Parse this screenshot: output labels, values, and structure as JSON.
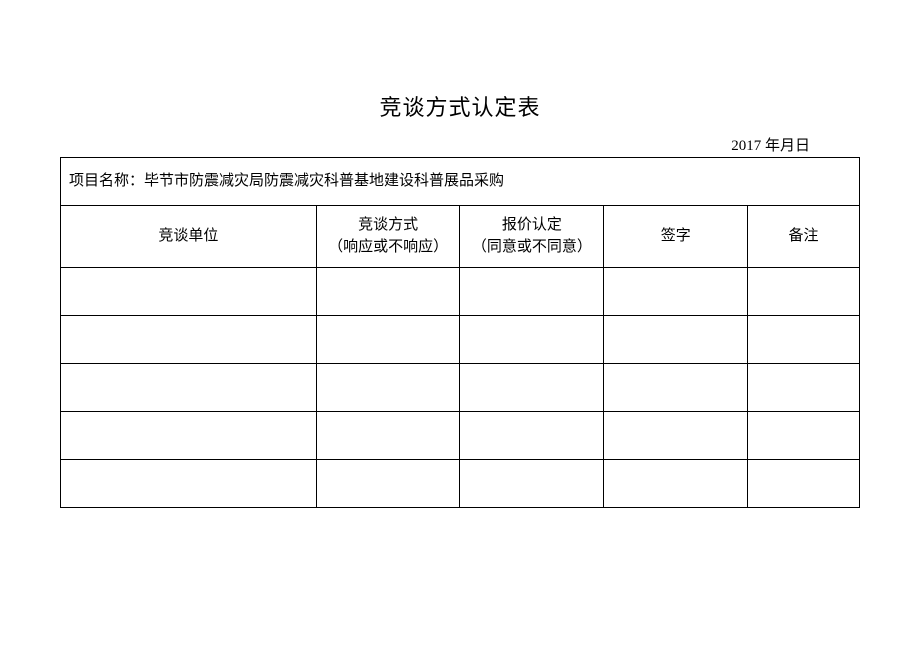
{
  "title": "竞谈方式认定表",
  "date": "2017 年月日",
  "project_label": "项目名称：",
  "project_name": "毕节市防震减灾局防震减灾科普基地建设科普展品采购",
  "columns": {
    "unit": "竞谈单位",
    "method_line1": "竞谈方式",
    "method_line2": "（响应或不响应）",
    "quote_line1": "报价认定",
    "quote_line2": "（同意或不同意）",
    "sign": "签字",
    "remark": "备注"
  },
  "rows": [
    {
      "unit": "",
      "method": "",
      "quote": "",
      "sign": "",
      "remark": ""
    },
    {
      "unit": "",
      "method": "",
      "quote": "",
      "sign": "",
      "remark": ""
    },
    {
      "unit": "",
      "method": "",
      "quote": "",
      "sign": "",
      "remark": ""
    },
    {
      "unit": "",
      "method": "",
      "quote": "",
      "sign": "",
      "remark": ""
    },
    {
      "unit": "",
      "method": "",
      "quote": "",
      "sign": "",
      "remark": ""
    }
  ],
  "styling": {
    "background_color": "#ffffff",
    "border_color": "#000000",
    "text_color": "#000000",
    "title_fontsize": 22,
    "body_fontsize": 15,
    "font_family": "SimSun"
  }
}
